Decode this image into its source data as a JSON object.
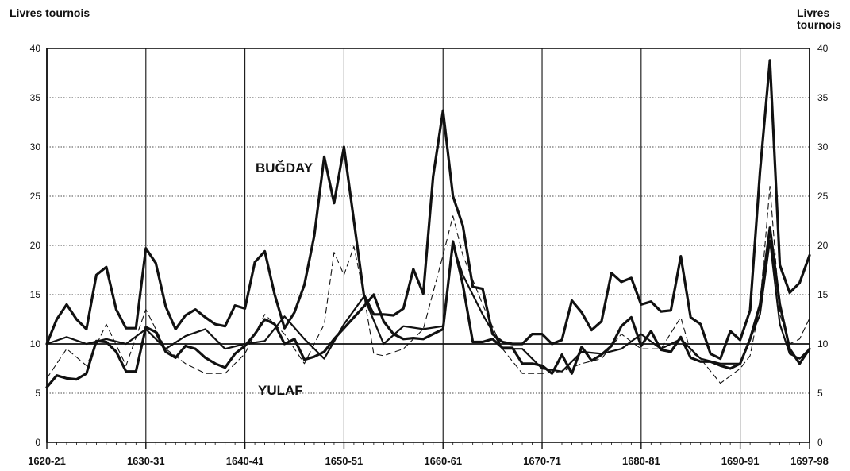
{
  "chart_data": {
    "type": "line",
    "ylabel": "Livres tournois",
    "ylim": [
      0,
      40
    ],
    "yticks": [
      "0",
      "5",
      "10",
      "15",
      "20",
      "25",
      "30",
      "35",
      "40"
    ],
    "x_tick_labels": [
      "1620-21",
      "1630-31",
      "1640-41",
      "1650-51",
      "1660-61",
      "1670-71",
      "1680-81",
      "1690-91",
      "1697-98"
    ],
    "x_start_year": 1620,
    "x_end_year": 1697,
    "grid": true,
    "reference_line": 10,
    "annotations": [
      "BUĞDAY",
      "YULAF"
    ],
    "series": [
      {
        "name": "BUĞDAY",
        "style": "thick-solid",
        "x": [
          1620,
          1621,
          1622,
          1623,
          1624,
          1625,
          1626,
          1627,
          1628,
          1629,
          1630,
          1631,
          1632,
          1633,
          1634,
          1635,
          1636,
          1637,
          1638,
          1639,
          1640,
          1641,
          1642,
          1643,
          1644,
          1645,
          1646,
          1647,
          1648,
          1649,
          1650,
          1651,
          1652,
          1653,
          1654,
          1655,
          1656,
          1657,
          1658,
          1659,
          1660,
          1661,
          1662,
          1663,
          1664,
          1665,
          1666,
          1667,
          1668,
          1669,
          1670,
          1671,
          1672,
          1673,
          1674,
          1675,
          1676,
          1677,
          1678,
          1679,
          1680,
          1681,
          1682,
          1683,
          1684,
          1685,
          1686,
          1687,
          1688,
          1689,
          1690,
          1691,
          1692,
          1693,
          1694,
          1695,
          1696,
          1697
        ],
        "values": [
          10,
          12.5,
          14,
          12.5,
          11.5,
          17,
          17.8,
          13.5,
          11.6,
          11.6,
          19.7,
          18.2,
          13.8,
          11.5,
          12.9,
          13.5,
          12.7,
          12,
          11.8,
          13.9,
          13.6,
          18.3,
          19.4,
          15,
          11.6,
          13.2,
          16,
          21,
          29,
          24.3,
          30,
          22.5,
          15,
          13,
          13,
          12.9,
          13.6,
          17.6,
          15.1,
          27,
          33.7,
          25,
          22,
          15.8,
          15.6,
          11,
          10.2,
          10,
          10,
          11,
          11,
          10,
          10.4,
          14.4,
          13.2,
          11.4,
          12.3,
          17.2,
          16.3,
          16.7,
          14,
          14.3,
          13.3,
          13.4,
          18.9,
          12.7,
          12,
          9,
          8.5,
          11.3,
          10.4,
          13.4,
          27.5,
          38.8,
          18,
          15.2,
          16.2,
          19
        ]
      },
      {
        "name": "",
        "style": "thin-dashed",
        "x": [
          1620,
          1622,
          1624,
          1626,
          1628,
          1630,
          1632,
          1634,
          1636,
          1638,
          1640,
          1642,
          1644,
          1646,
          1648,
          1649,
          1650,
          1651,
          1652,
          1653,
          1654,
          1656,
          1658,
          1660,
          1661,
          1662,
          1664,
          1666,
          1668,
          1670,
          1672,
          1674,
          1676,
          1678,
          1680,
          1682,
          1684,
          1685,
          1686,
          1688,
          1690,
          1691,
          1692,
          1693,
          1694,
          1695,
          1696,
          1697
        ],
        "values": [
          6.5,
          9.5,
          7.8,
          12,
          7.8,
          13.5,
          9.5,
          8,
          7,
          7,
          9,
          13,
          11,
          8,
          12,
          19.3,
          17,
          19.9,
          15,
          9,
          8.8,
          9.5,
          11.5,
          19,
          23,
          19,
          14,
          9.5,
          7,
          7,
          7.2,
          8,
          8.5,
          11,
          9.5,
          9.5,
          12.7,
          9.2,
          8.5,
          6,
          7.5,
          8.8,
          14,
          26,
          13,
          10,
          10.5,
          12.6
        ]
      },
      {
        "name": "",
        "style": "medium-solid",
        "x": [
          1620,
          1622,
          1624,
          1626,
          1628,
          1630,
          1632,
          1634,
          1636,
          1638,
          1640,
          1642,
          1644,
          1646,
          1648,
          1650,
          1652,
          1654,
          1656,
          1658,
          1660,
          1661,
          1662,
          1664,
          1666,
          1668,
          1670,
          1672,
          1674,
          1676,
          1678,
          1680,
          1682,
          1684,
          1686,
          1688,
          1690,
          1692,
          1693,
          1694,
          1695,
          1696,
          1697
        ],
        "values": [
          10,
          10.7,
          10,
          10.5,
          10,
          11.5,
          9.5,
          10.8,
          11.5,
          9.5,
          10,
          10.3,
          12.8,
          10.5,
          8.5,
          12,
          14.8,
          10,
          11.8,
          11.5,
          11.8,
          20,
          17,
          13,
          9.5,
          9.5,
          7.5,
          7.2,
          9.2,
          9,
          9.5,
          11,
          9.5,
          10.5,
          8.5,
          8,
          8,
          13,
          20.5,
          12,
          9,
          8.5,
          9.5
        ]
      },
      {
        "name": "YULAF",
        "style": "thick-solid",
        "x": [
          1620,
          1621,
          1622,
          1623,
          1624,
          1625,
          1626,
          1627,
          1628,
          1629,
          1630,
          1631,
          1632,
          1633,
          1634,
          1635,
          1636,
          1637,
          1638,
          1639,
          1640,
          1641,
          1642,
          1643,
          1644,
          1645,
          1646,
          1647,
          1648,
          1649,
          1650,
          1651,
          1652,
          1653,
          1654,
          1655,
          1656,
          1657,
          1658,
          1659,
          1660,
          1661,
          1662,
          1663,
          1664,
          1665,
          1666,
          1667,
          1668,
          1669,
          1670,
          1671,
          1672,
          1673,
          1674,
          1675,
          1676,
          1677,
          1678,
          1679,
          1680,
          1681,
          1682,
          1683,
          1684,
          1685,
          1686,
          1687,
          1688,
          1689,
          1690,
          1691,
          1692,
          1693,
          1694,
          1695,
          1696,
          1697
        ],
        "values": [
          5.6,
          6.8,
          6.5,
          6.4,
          7,
          10.3,
          10.2,
          9.2,
          7.2,
          7.2,
          11.7,
          11.2,
          9.2,
          8.6,
          9.8,
          9.5,
          8.6,
          8,
          7.6,
          9,
          9.8,
          11,
          12.5,
          12,
          10,
          10.5,
          8.4,
          8.7,
          9.2,
          10.5,
          11.6,
          12.7,
          13.8,
          15,
          12.3,
          11,
          10.5,
          10.6,
          10.5,
          11,
          11.5,
          20.4,
          16,
          10.2,
          10.2,
          10.5,
          9.6,
          9.6,
          8,
          8,
          7.8,
          7,
          8.9,
          7,
          9.7,
          8.3,
          8.9,
          9.8,
          11.8,
          12.7,
          9.8,
          11.3,
          9.4,
          9.2,
          10.7,
          8.6,
          8.2,
          8.2,
          7.8,
          7.5,
          8,
          10.5,
          14,
          21.8,
          14,
          9.5,
          8,
          9.5
        ]
      }
    ]
  }
}
